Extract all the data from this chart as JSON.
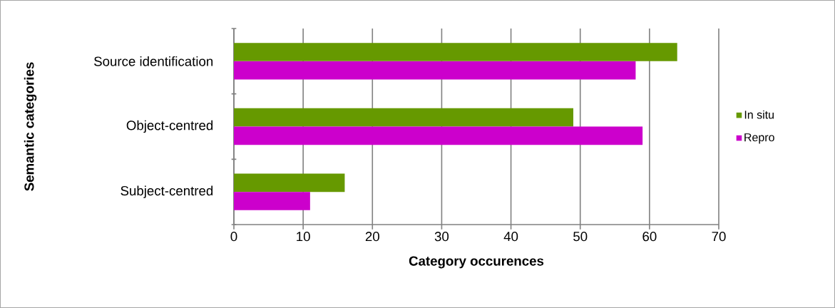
{
  "chart_data": {
    "type": "bar",
    "orientation": "horizontal",
    "categories": [
      "Source identification",
      "Object-centred",
      "Subject-centred"
    ],
    "series": [
      {
        "name": "In situ",
        "color": "#669900",
        "values": [
          64,
          49,
          16
        ]
      },
      {
        "name": "Repro",
        "color": "#cc00cc",
        "values": [
          58,
          59,
          11
        ]
      }
    ],
    "xlabel": "Category occurences",
    "ylabel": "Semantic categories",
    "xlim": [
      0,
      70
    ],
    "xticks": [
      0,
      10,
      20,
      30,
      40,
      50,
      60,
      70
    ],
    "grid": "x",
    "legend": "right"
  }
}
